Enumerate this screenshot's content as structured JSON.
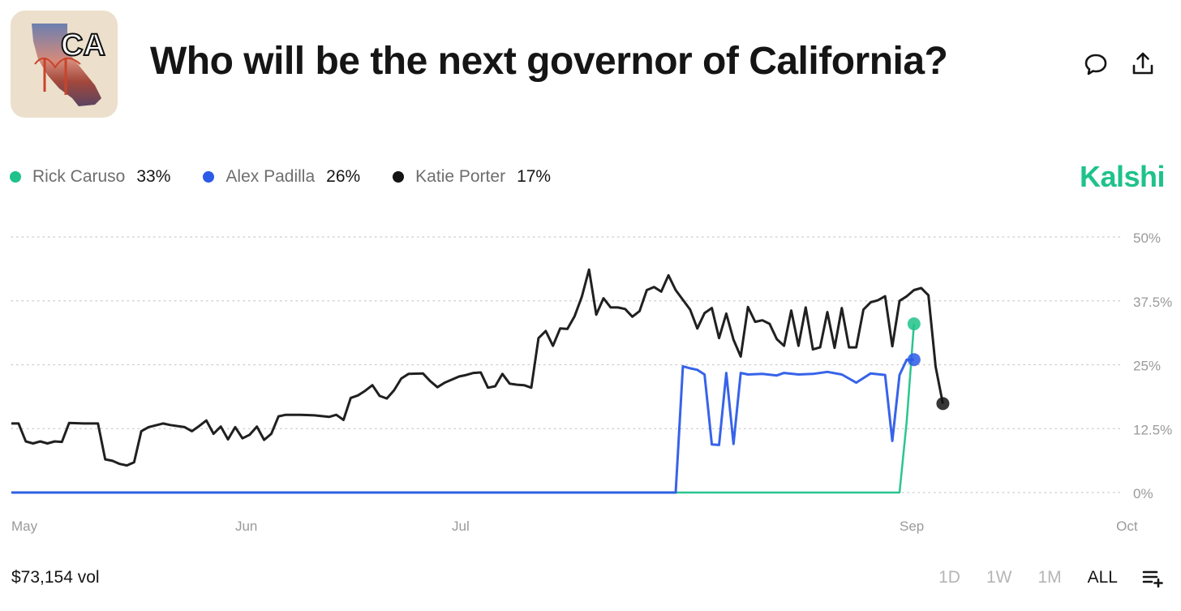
{
  "header": {
    "title": "Who will be the next governor of California?",
    "thumb_label": "CA"
  },
  "icons": {
    "comment": "comment-icon",
    "share": "share-icon",
    "range_menu": "add-list-icon"
  },
  "legend": [
    {
      "name": "Rick Caruso",
      "value": "33%",
      "color": "#1fc28a"
    },
    {
      "name": "Alex Padilla",
      "value": "26%",
      "color": "#2c5be8"
    },
    {
      "name": "Katie Porter",
      "value": "17%",
      "color": "#141414"
    }
  ],
  "brand": "Kalshi",
  "footer": {
    "volume": "$73,154 vol",
    "ranges": [
      "1D",
      "1W",
      "1M",
      "ALL"
    ],
    "active_range": "ALL"
  },
  "chart_data": {
    "type": "line",
    "x_range": [
      "2025-05-01",
      "2025-10-02"
    ],
    "x_ticks": [
      {
        "label": "May",
        "date": "2025-05-01"
      },
      {
        "label": "Jun",
        "date": "2025-06-01"
      },
      {
        "label": "Jul",
        "date": "2025-07-01"
      },
      {
        "label": "Sep",
        "date": "2025-09-01"
      },
      {
        "label": "Oct",
        "date": "2025-10-01"
      }
    ],
    "y_ticks": [
      "0%",
      "12.5%",
      "25%",
      "37.5%",
      "50%"
    ],
    "ylim": [
      0,
      50
    ],
    "grid": true,
    "y_axis_side": "right",
    "series": [
      {
        "name": "Katie Porter",
        "color": "#141414",
        "points": [
          [
            "2025-05-01",
            13.5
          ],
          [
            "2025-05-02",
            13.5
          ],
          [
            "2025-05-03",
            10
          ],
          [
            "2025-05-04",
            9.6
          ],
          [
            "2025-05-05",
            10
          ],
          [
            "2025-05-06",
            9.6
          ],
          [
            "2025-05-07",
            10
          ],
          [
            "2025-05-08",
            9.9
          ],
          [
            "2025-05-09",
            13.6
          ],
          [
            "2025-05-11",
            13.5
          ],
          [
            "2025-05-13",
            13.5
          ],
          [
            "2025-05-14",
            6.5
          ],
          [
            "2025-05-15",
            6.2
          ],
          [
            "2025-05-16",
            5.6
          ],
          [
            "2025-05-17",
            5.3
          ],
          [
            "2025-05-18",
            5.9
          ],
          [
            "2025-05-19",
            12
          ],
          [
            "2025-05-20",
            12.8
          ],
          [
            "2025-05-22",
            13.5
          ],
          [
            "2025-05-23",
            13.2
          ],
          [
            "2025-05-25",
            12.8
          ],
          [
            "2025-05-26",
            12
          ],
          [
            "2025-05-27",
            13
          ],
          [
            "2025-05-28",
            14.1
          ],
          [
            "2025-05-29",
            11.5
          ],
          [
            "2025-05-30",
            12.9
          ],
          [
            "2025-05-31",
            10.4
          ],
          [
            "2025-06-01",
            12.8
          ],
          [
            "2025-06-02",
            10.6
          ],
          [
            "2025-06-03",
            11.3
          ],
          [
            "2025-06-04",
            12.9
          ],
          [
            "2025-06-05",
            10.3
          ],
          [
            "2025-06-06",
            11.5
          ],
          [
            "2025-06-07",
            14.9
          ],
          [
            "2025-06-08",
            15.2
          ],
          [
            "2025-06-10",
            15.2
          ],
          [
            "2025-06-12",
            15.1
          ],
          [
            "2025-06-14",
            14.8
          ],
          [
            "2025-06-15",
            15.2
          ],
          [
            "2025-06-16",
            14.2
          ],
          [
            "2025-06-17",
            18.5
          ],
          [
            "2025-06-18",
            19
          ],
          [
            "2025-06-19",
            19.9
          ],
          [
            "2025-06-20",
            21
          ],
          [
            "2025-06-21",
            18.9
          ],
          [
            "2025-06-22",
            18.4
          ],
          [
            "2025-06-23",
            20
          ],
          [
            "2025-06-24",
            22.3
          ],
          [
            "2025-06-25",
            23.2
          ],
          [
            "2025-06-27",
            23.3
          ],
          [
            "2025-06-28",
            21.8
          ],
          [
            "2025-06-29",
            20.6
          ],
          [
            "2025-06-30",
            21.5
          ],
          [
            "2025-07-02",
            22.7
          ],
          [
            "2025-07-03",
            23
          ],
          [
            "2025-07-04",
            23.4
          ],
          [
            "2025-07-05",
            23.5
          ],
          [
            "2025-07-06",
            20.5
          ],
          [
            "2025-07-07",
            20.8
          ],
          [
            "2025-07-08",
            23.2
          ],
          [
            "2025-07-09",
            21.3
          ],
          [
            "2025-07-10",
            21.1
          ],
          [
            "2025-07-11",
            21
          ],
          [
            "2025-07-12",
            20.5
          ],
          [
            "2025-07-13",
            30.2
          ],
          [
            "2025-07-14",
            31.6
          ],
          [
            "2025-07-15",
            28.7
          ],
          [
            "2025-07-16",
            32.1
          ],
          [
            "2025-07-17",
            32
          ],
          [
            "2025-07-18",
            34.5
          ],
          [
            "2025-07-19",
            38.3
          ],
          [
            "2025-07-20",
            43.6
          ],
          [
            "2025-07-21",
            34.8
          ],
          [
            "2025-07-22",
            38
          ],
          [
            "2025-07-23",
            36.2
          ],
          [
            "2025-07-24",
            36.2
          ],
          [
            "2025-07-25",
            35.9
          ],
          [
            "2025-07-26",
            34.4
          ],
          [
            "2025-07-27",
            35.5
          ],
          [
            "2025-07-28",
            39.6
          ],
          [
            "2025-07-29",
            40.2
          ],
          [
            "2025-07-30",
            39.3
          ],
          [
            "2025-07-31",
            42.5
          ],
          [
            "2025-08-01",
            39.6
          ],
          [
            "2025-08-02",
            37.7
          ],
          [
            "2025-08-03",
            35.8
          ],
          [
            "2025-08-04",
            32.1
          ],
          [
            "2025-08-05",
            35.1
          ],
          [
            "2025-08-06",
            36.1
          ],
          [
            "2025-08-07",
            30.2
          ],
          [
            "2025-08-08",
            35
          ],
          [
            "2025-08-09",
            29.9
          ],
          [
            "2025-08-10",
            26.6
          ],
          [
            "2025-08-11",
            36.3
          ],
          [
            "2025-08-12",
            33.4
          ],
          [
            "2025-08-13",
            33.7
          ],
          [
            "2025-08-14",
            33
          ],
          [
            "2025-08-15",
            30
          ],
          [
            "2025-08-16",
            28.7
          ],
          [
            "2025-08-17",
            35.6
          ],
          [
            "2025-08-18",
            28.7
          ],
          [
            "2025-08-19",
            36.2
          ],
          [
            "2025-08-20",
            28
          ],
          [
            "2025-08-21",
            28.4
          ],
          [
            "2025-08-22",
            35.3
          ],
          [
            "2025-08-23",
            28.3
          ],
          [
            "2025-08-24",
            36.1
          ],
          [
            "2025-08-25",
            28.4
          ],
          [
            "2025-08-26",
            28.4
          ],
          [
            "2025-08-27",
            35.8
          ],
          [
            "2025-08-28",
            37.2
          ],
          [
            "2025-08-29",
            37.6
          ],
          [
            "2025-08-30",
            38.4
          ],
          [
            "2025-08-31",
            28.6
          ],
          [
            "2025-09-01",
            37.5
          ],
          [
            "2025-09-02",
            38.4
          ],
          [
            "2025-09-03",
            39.6
          ],
          [
            "2025-09-04",
            40
          ],
          [
            "2025-09-05",
            38.6
          ],
          [
            "2025-09-06",
            24.6
          ],
          [
            "2025-09-07",
            17.4
          ]
        ]
      },
      {
        "name": "Alex Padilla",
        "color": "#2c5be8",
        "points": [
          [
            "2025-05-01",
            0
          ],
          [
            "2025-08-01",
            0
          ],
          [
            "2025-08-02",
            24.7
          ],
          [
            "2025-08-03",
            24.3
          ],
          [
            "2025-08-04",
            24
          ],
          [
            "2025-08-05",
            23.1
          ],
          [
            "2025-08-06",
            9.4
          ],
          [
            "2025-08-07",
            9.3
          ],
          [
            "2025-08-08",
            23.4
          ],
          [
            "2025-08-09",
            9.5
          ],
          [
            "2025-08-10",
            23.4
          ],
          [
            "2025-08-11",
            23.1
          ],
          [
            "2025-08-13",
            23.2
          ],
          [
            "2025-08-15",
            22.9
          ],
          [
            "2025-08-16",
            23.4
          ],
          [
            "2025-08-18",
            23.1
          ],
          [
            "2025-08-20",
            23.2
          ],
          [
            "2025-08-22",
            23.6
          ],
          [
            "2025-08-24",
            23.1
          ],
          [
            "2025-08-26",
            21.5
          ],
          [
            "2025-08-28",
            23.3
          ],
          [
            "2025-08-30",
            23.0
          ],
          [
            "2025-08-31",
            10.1
          ],
          [
            "2025-09-01",
            23.0
          ],
          [
            "2025-09-02",
            26
          ],
          [
            "2025-09-03",
            26
          ]
        ]
      },
      {
        "name": "Rick Caruso",
        "color": "#1fc28a",
        "points": [
          [
            "2025-05-01",
            0
          ],
          [
            "2025-09-01",
            0
          ],
          [
            "2025-09-02",
            14
          ],
          [
            "2025-09-03",
            33
          ]
        ]
      }
    ]
  }
}
